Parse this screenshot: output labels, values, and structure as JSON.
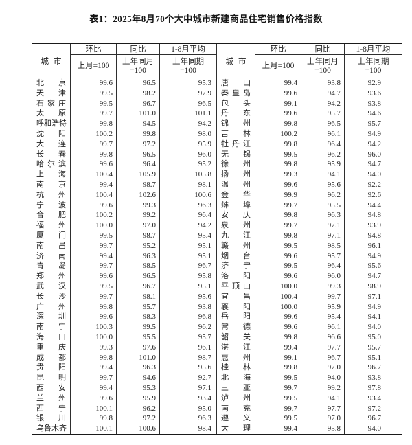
{
  "title": "表1：2025年8月70个大中城市新建商品住宅销售价格指数",
  "header": {
    "city": "城市",
    "mom": "环比",
    "mom_base": "上月=100",
    "yoy": "同比",
    "yoy_base": "上年同月\n=100",
    "avg": "1-8月平均",
    "avg_base": "上年同期\n=100"
  },
  "left_rows": [
    {
      "city": "北京",
      "mom": "99.6",
      "yoy": "96.5",
      "avg": "95.3"
    },
    {
      "city": "天津",
      "mom": "99.5",
      "yoy": "98.2",
      "avg": "97.9"
    },
    {
      "city": "石家庄",
      "mom": "99.5",
      "yoy": "96.7",
      "avg": "96.5"
    },
    {
      "city": "太原",
      "mom": "99.7",
      "yoy": "101.0",
      "avg": "101.1"
    },
    {
      "city": "呼和浩特",
      "mom": "99.8",
      "yoy": "94.5",
      "avg": "94.2"
    },
    {
      "city": "沈阳",
      "mom": "100.2",
      "yoy": "99.8",
      "avg": "98.0"
    },
    {
      "city": "大连",
      "mom": "99.7",
      "yoy": "97.2",
      "avg": "95.9"
    },
    {
      "city": "长春",
      "mom": "99.8",
      "yoy": "96.5",
      "avg": "96.0"
    },
    {
      "city": "哈尔滨",
      "mom": "99.6",
      "yoy": "96.4",
      "avg": "95.2"
    },
    {
      "city": "上海",
      "mom": "100.4",
      "yoy": "105.9",
      "avg": "105.8"
    },
    {
      "city": "南京",
      "mom": "99.4",
      "yoy": "98.7",
      "avg": "98.1"
    },
    {
      "city": "杭州",
      "mom": "100.4",
      "yoy": "102.6",
      "avg": "100.6"
    },
    {
      "city": "宁波",
      "mom": "99.6",
      "yoy": "99.3",
      "avg": "96.3"
    },
    {
      "city": "合肥",
      "mom": "100.2",
      "yoy": "99.2",
      "avg": "96.4"
    },
    {
      "city": "福州",
      "mom": "100.0",
      "yoy": "97.0",
      "avg": "94.2"
    },
    {
      "city": "厦门",
      "mom": "99.5",
      "yoy": "98.7",
      "avg": "95.4"
    },
    {
      "city": "南昌",
      "mom": "99.7",
      "yoy": "95.2",
      "avg": "95.1"
    },
    {
      "city": "济南",
      "mom": "99.4",
      "yoy": "96.3",
      "avg": "95.1"
    },
    {
      "city": "青岛",
      "mom": "99.7",
      "yoy": "98.5",
      "avg": "96.7"
    },
    {
      "city": "郑州",
      "mom": "99.6",
      "yoy": "96.5",
      "avg": "95.8"
    },
    {
      "city": "武汉",
      "mom": "99.5",
      "yoy": "96.7",
      "avg": "95.1"
    },
    {
      "city": "长沙",
      "mom": "99.7",
      "yoy": "98.1",
      "avg": "95.6"
    },
    {
      "city": "广州",
      "mom": "99.8",
      "yoy": "95.7",
      "avg": "93.8"
    },
    {
      "city": "深圳",
      "mom": "99.6",
      "yoy": "98.3",
      "avg": "96.8"
    },
    {
      "city": "南宁",
      "mom": "100.3",
      "yoy": "99.5",
      "avg": "96.2"
    },
    {
      "city": "海口",
      "mom": "100.0",
      "yoy": "95.5",
      "avg": "95.7"
    },
    {
      "city": "重庆",
      "mom": "99.3",
      "yoy": "97.6",
      "avg": "96.1"
    },
    {
      "city": "成都",
      "mom": "99.8",
      "yoy": "101.0",
      "avg": "98.7"
    },
    {
      "city": "贵阳",
      "mom": "99.4",
      "yoy": "96.3",
      "avg": "95.6"
    },
    {
      "city": "昆明",
      "mom": "99.7",
      "yoy": "94.6",
      "avg": "92.7"
    },
    {
      "city": "西安",
      "mom": "99.4",
      "yoy": "95.3",
      "avg": "97.1"
    },
    {
      "city": "兰州",
      "mom": "99.6",
      "yoy": "95.9",
      "avg": "93.4"
    },
    {
      "city": "西宁",
      "mom": "100.1",
      "yoy": "96.2",
      "avg": "95.0"
    },
    {
      "city": "银川",
      "mom": "99.8",
      "yoy": "97.2",
      "avg": "96.3"
    },
    {
      "city": "乌鲁木齐",
      "mom": "100.1",
      "yoy": "100.6",
      "avg": "98.4"
    }
  ],
  "right_rows": [
    {
      "city": "唐山",
      "mom": "99.4",
      "yoy": "93.8",
      "avg": "92.9"
    },
    {
      "city": "秦皇岛",
      "mom": "99.6",
      "yoy": "94.7",
      "avg": "93.6"
    },
    {
      "city": "包头",
      "mom": "99.1",
      "yoy": "94.2",
      "avg": "93.8"
    },
    {
      "city": "丹东",
      "mom": "99.6",
      "yoy": "95.7",
      "avg": "94.6"
    },
    {
      "city": "锦州",
      "mom": "99.8",
      "yoy": "96.5",
      "avg": "95.7"
    },
    {
      "city": "吉林",
      "mom": "100.2",
      "yoy": "96.1",
      "avg": "94.9"
    },
    {
      "city": "牡丹江",
      "mom": "99.8",
      "yoy": "96.4",
      "avg": "94.2"
    },
    {
      "city": "无锡",
      "mom": "99.5",
      "yoy": "96.2",
      "avg": "96.0"
    },
    {
      "city": "徐州",
      "mom": "99.8",
      "yoy": "95.9",
      "avg": "94.7"
    },
    {
      "city": "扬州",
      "mom": "99.3",
      "yoy": "94.1",
      "avg": "94.0"
    },
    {
      "city": "温州",
      "mom": "99.6",
      "yoy": "95.6",
      "avg": "92.2"
    },
    {
      "city": "金华",
      "mom": "99.9",
      "yoy": "96.2",
      "avg": "92.6"
    },
    {
      "city": "蚌埠",
      "mom": "99.7",
      "yoy": "95.5",
      "avg": "94.4"
    },
    {
      "city": "安庆",
      "mom": "99.8",
      "yoy": "96.3",
      "avg": "94.8"
    },
    {
      "city": "泉州",
      "mom": "99.7",
      "yoy": "97.1",
      "avg": "93.9"
    },
    {
      "city": "九江",
      "mom": "99.8",
      "yoy": "97.1",
      "avg": "94.8"
    },
    {
      "city": "赣州",
      "mom": "99.5",
      "yoy": "98.5",
      "avg": "96.1"
    },
    {
      "city": "烟台",
      "mom": "99.6",
      "yoy": "95.7",
      "avg": "94.9"
    },
    {
      "city": "济宁",
      "mom": "99.5",
      "yoy": "96.4",
      "avg": "95.6"
    },
    {
      "city": "洛阳",
      "mom": "99.6",
      "yoy": "96.0",
      "avg": "94.7"
    },
    {
      "city": "平顶山",
      "mom": "100.0",
      "yoy": "99.3",
      "avg": "98.9"
    },
    {
      "city": "宜昌",
      "mom": "100.4",
      "yoy": "99.7",
      "avg": "97.1"
    },
    {
      "city": "襄阳",
      "mom": "100.0",
      "yoy": "95.9",
      "avg": "94.9"
    },
    {
      "city": "岳阳",
      "mom": "99.6",
      "yoy": "95.4",
      "avg": "94.1"
    },
    {
      "city": "常德",
      "mom": "99.6",
      "yoy": "96.1",
      "avg": "94.0"
    },
    {
      "city": "韶关",
      "mom": "99.8",
      "yoy": "96.6",
      "avg": "95.0"
    },
    {
      "city": "湛江",
      "mom": "99.4",
      "yoy": "97.7",
      "avg": "95.7"
    },
    {
      "city": "惠州",
      "mom": "99.1",
      "yoy": "96.7",
      "avg": "95.1"
    },
    {
      "city": "桂林",
      "mom": "99.8",
      "yoy": "97.0",
      "avg": "96.7"
    },
    {
      "city": "北海",
      "mom": "99.5",
      "yoy": "94.0",
      "avg": "93.8"
    },
    {
      "city": "三亚",
      "mom": "99.7",
      "yoy": "99.2",
      "avg": "97.8"
    },
    {
      "city": "泸州",
      "mom": "99.5",
      "yoy": "94.1",
      "avg": "93.4"
    },
    {
      "city": "南充",
      "mom": "99.7",
      "yoy": "97.7",
      "avg": "97.2"
    },
    {
      "city": "遵义",
      "mom": "99.5",
      "yoy": "97.0",
      "avg": "96.7"
    },
    {
      "city": "大理",
      "mom": "99.4",
      "yoy": "95.8",
      "avg": "94.0"
    }
  ]
}
